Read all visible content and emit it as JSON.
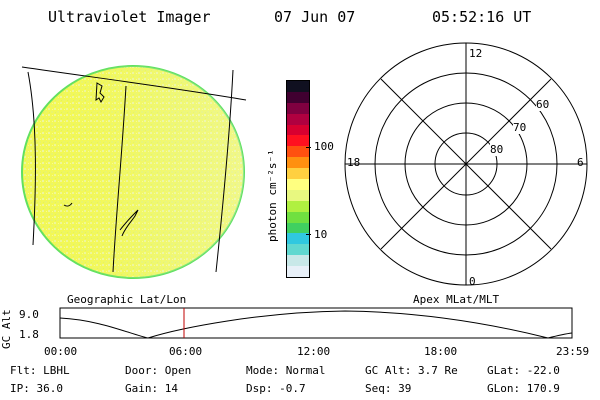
{
  "header": {
    "instrument": "Ultraviolet Imager",
    "date": "07 Jun 07",
    "time": "05:52:16 UT"
  },
  "colorbar": {
    "unit_label": "photon cm⁻²s⁻¹",
    "tick_100": "100",
    "tick_10": "10",
    "colors": [
      "#e8f0f8",
      "#c8e8e8",
      "#60d8d0",
      "#30c8e0",
      "#40d060",
      "#70e040",
      "#b0f040",
      "#e8f880",
      "#ffff80",
      "#ffd040",
      "#ff9010",
      "#ff5010",
      "#ff1020",
      "#d80030",
      "#b00040",
      "#800040",
      "#400030",
      "#101020"
    ]
  },
  "polar": {
    "lat_labels": [
      "60",
      "70",
      "80"
    ],
    "mlt_labels": {
      "top": "12",
      "bottom": "0",
      "left": "18",
      "right": "6"
    }
  },
  "strip": {
    "left_label": "Geographic Lat/Lon",
    "right_label": "Apex MLat/MLT",
    "ylabel": "GC Alt",
    "ytick_top": "9.0",
    "ytick_bottom": "1.8",
    "xticks": [
      "00:00",
      "06:00",
      "12:00",
      "18:00",
      "23:59"
    ]
  },
  "info": {
    "filter": "Flt: LBHL",
    "door": "Door: Open",
    "mode": "Mode: Normal",
    "gc_alt": "GC Alt: 3.7 Re",
    "glat": "GLat: -22.0",
    "ip": "IP: 36.0",
    "gain": "Gain: 14",
    "dsp": "Dsp:   -0.7",
    "seq": "Seq: 39",
    "glon": "GLon: 170.9"
  }
}
